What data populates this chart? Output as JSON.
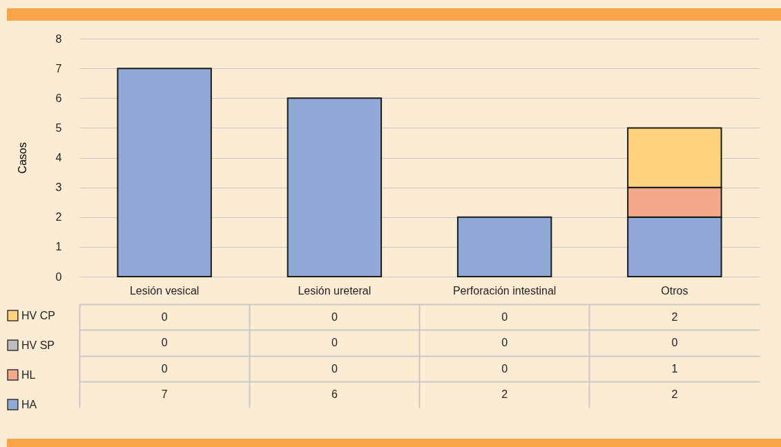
{
  "chart_data": {
    "type": "bar",
    "stacked": true,
    "ylabel": "Casos",
    "categories": [
      "Lesión vesical",
      "Lesión ureteral",
      "Perforación intestinal",
      "Otros"
    ],
    "series": [
      {
        "name": "HA",
        "color": "#91a9d6",
        "values": [
          7,
          6,
          2,
          2
        ]
      },
      {
        "name": "HL",
        "color": "#f4a98a",
        "values": [
          0,
          0,
          0,
          1
        ]
      },
      {
        "name": "HV SP",
        "color": "#bdbdbd",
        "values": [
          0,
          0,
          0,
          0
        ]
      },
      {
        "name": "HV CP",
        "color": "#ffd27f",
        "values": [
          0,
          0,
          0,
          2
        ]
      }
    ],
    "ylim": [
      0,
      8
    ],
    "yticks": [
      0,
      1,
      2,
      3,
      4,
      5,
      6,
      7,
      8
    ],
    "grid": "y",
    "data_labels": true,
    "legend": "bottom left"
  }
}
